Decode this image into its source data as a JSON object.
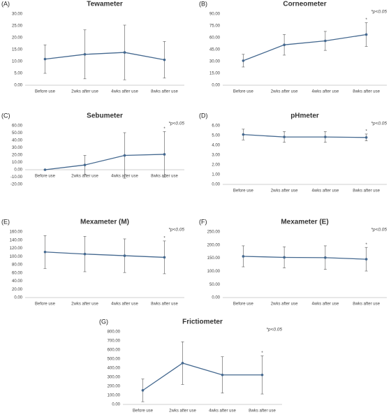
{
  "chart_data": [
    {
      "type": "line",
      "panel_label": "(A)",
      "title": "Tewameter",
      "categories": [
        "Before use",
        "2wks after use",
        "4wks after use",
        "8wks after use"
      ],
      "values": [
        11,
        13,
        13.8,
        10.7
      ],
      "errors": [
        6,
        10.3,
        11.5,
        7.7
      ],
      "color": "#44688f",
      "ylim": [
        0,
        30
      ],
      "yticks": [
        {
          "value": 0,
          "label": "0.00"
        },
        {
          "value": 5,
          "label": "5.00"
        },
        {
          "value": 10,
          "label": "10.00"
        },
        {
          "value": 15,
          "label": "15.00"
        },
        {
          "value": 20,
          "label": "20.00"
        },
        {
          "value": 25,
          "label": "25.00"
        },
        {
          "value": 30,
          "label": "30.00"
        }
      ]
    },
    {
      "type": "line",
      "panel_label": "(B)",
      "title": "Corneometer",
      "annotation": "*p<0.05",
      "categories": [
        "Before use",
        "2wks after use",
        "4wks after use",
        "8wks after use"
      ],
      "values": [
        31,
        51,
        56,
        64
      ],
      "errors": [
        8,
        13,
        12,
        15
      ],
      "point_notes": [
        null,
        null,
        null,
        "*"
      ],
      "color": "#44688f",
      "ylim": [
        0,
        90
      ],
      "yticks": [
        {
          "value": 0,
          "label": "0.00"
        },
        {
          "value": 15,
          "label": "15.00"
        },
        {
          "value": 30,
          "label": "30.00"
        },
        {
          "value": 45,
          "label": "45.00"
        },
        {
          "value": 60,
          "label": "60.00"
        },
        {
          "value": 75,
          "label": "75.00"
        },
        {
          "value": 90,
          "label": "90.00"
        }
      ]
    },
    {
      "type": "line",
      "panel_label": "(C)",
      "title": "Sebumeter",
      "annotation": "*p<0.05",
      "categories": [
        "Before use",
        "2wks after use",
        "4wks after use",
        "8wks after use"
      ],
      "values": [
        0,
        6.5,
        19.5,
        21
      ],
      "errors": [
        0,
        13,
        31,
        31
      ],
      "point_notes": [
        null,
        null,
        null,
        "*"
      ],
      "color": "#44688f",
      "ylim": [
        -20,
        60
      ],
      "yticks": [
        {
          "value": -20,
          "label": "-20.00"
        },
        {
          "value": -10,
          "label": "-10.00"
        },
        {
          "value": 0,
          "label": "0.00"
        },
        {
          "value": 10,
          "label": "10.00"
        },
        {
          "value": 20,
          "label": "20.00"
        },
        {
          "value": 30,
          "label": "30.00"
        },
        {
          "value": 40,
          "label": "40.00"
        },
        {
          "value": 50,
          "label": "50.00"
        },
        {
          "value": 60,
          "label": "60.00"
        }
      ]
    },
    {
      "type": "line",
      "panel_label": "(D)",
      "title": "pHmeter",
      "annotation": "*p<0.05",
      "categories": [
        "Before use",
        "2wks after use",
        "4wks after use",
        "8wks after use"
      ],
      "values": [
        5.1,
        4.85,
        4.85,
        4.8
      ],
      "errors": [
        0.55,
        0.55,
        0.55,
        0.35
      ],
      "point_notes": [
        null,
        null,
        null,
        "*"
      ],
      "color": "#44688f",
      "ylim": [
        0,
        6
      ],
      "yticks": [
        {
          "value": 0,
          "label": "0.00"
        },
        {
          "value": 1,
          "label": "1.00"
        },
        {
          "value": 2,
          "label": "2.00"
        },
        {
          "value": 3,
          "label": "3.00"
        },
        {
          "value": 4,
          "label": "4.00"
        },
        {
          "value": 5,
          "label": "5.00"
        },
        {
          "value": 6,
          "label": "6.00"
        }
      ]
    },
    {
      "type": "line",
      "panel_label": "(E)",
      "title": "Mexameter (M)",
      "annotation": "*p<0.05",
      "categories": [
        "Before use",
        "2wks after use",
        "4wks after use",
        "8wks after use"
      ],
      "values": [
        111,
        106,
        102,
        98
      ],
      "errors": [
        40,
        43,
        41,
        40
      ],
      "point_notes": [
        null,
        null,
        null,
        "*"
      ],
      "color": "#44688f",
      "ylim": [
        0,
        160
      ],
      "yticks": [
        {
          "value": 0,
          "label": "0.00"
        },
        {
          "value": 20,
          "label": "20.00"
        },
        {
          "value": 40,
          "label": "40.00"
        },
        {
          "value": 60,
          "label": "60.00"
        },
        {
          "value": 80,
          "label": "80.00"
        },
        {
          "value": 100,
          "label": "100.00"
        },
        {
          "value": 120,
          "label": "120.00"
        },
        {
          "value": 140,
          "label": "140.00"
        },
        {
          "value": 160,
          "label": "160.00"
        }
      ]
    },
    {
      "type": "line",
      "panel_label": "(F)",
      "title": "Mexameter (E)",
      "annotation": "*p<0.05",
      "categories": [
        "Before use",
        "2wks after use",
        "4wks after use",
        "8wks after use"
      ],
      "values": [
        157,
        153,
        152,
        146
      ],
      "errors": [
        40,
        40,
        45,
        45
      ],
      "point_notes": [
        null,
        null,
        null,
        "*"
      ],
      "color": "#44688f",
      "ylim": [
        0,
        250
      ],
      "yticks": [
        {
          "value": 0,
          "label": "0.00"
        },
        {
          "value": 50,
          "label": "50.00"
        },
        {
          "value": 100,
          "label": "100.00"
        },
        {
          "value": 150,
          "label": "150.00"
        },
        {
          "value": 200,
          "label": "200.00"
        },
        {
          "value": 250,
          "label": "250.00"
        }
      ]
    },
    {
      "type": "line",
      "panel_label": "(G)",
      "title": "Frictiometer",
      "annotation": "*p<0.05",
      "categories": [
        "Before use",
        "2wks after use",
        "4wks after use",
        "8wks after use"
      ],
      "values": [
        155,
        455,
        325,
        325
      ],
      "errors": [
        125,
        235,
        200,
        210
      ],
      "point_notes": [
        null,
        null,
        null,
        "*"
      ],
      "color": "#44688f",
      "ylim": [
        0,
        800
      ],
      "yticks": [
        {
          "value": 0,
          "label": "0.00"
        },
        {
          "value": 100,
          "label": "100.00"
        },
        {
          "value": 200,
          "label": "200.00"
        },
        {
          "value": 300,
          "label": "300.00"
        },
        {
          "value": 400,
          "label": "400.00"
        },
        {
          "value": 500,
          "label": "500.00"
        },
        {
          "value": 600,
          "label": "600.00"
        },
        {
          "value": 700,
          "label": "700.00"
        },
        {
          "value": 800,
          "label": "800.00"
        }
      ]
    }
  ]
}
